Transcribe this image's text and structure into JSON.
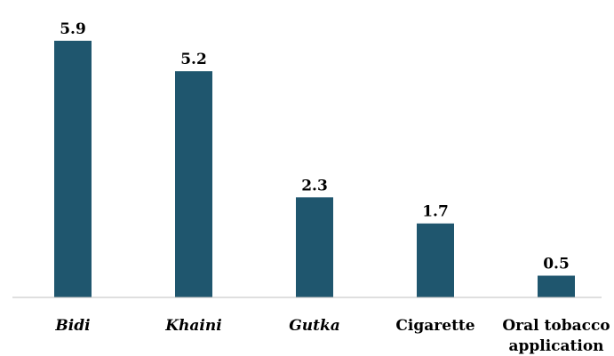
{
  "chart_data": {
    "type": "bar",
    "title": "",
    "xlabel": "",
    "ylabel": "",
    "categories": [
      {
        "lines": [
          "Bidi"
        ],
        "italic": true
      },
      {
        "lines": [
          "Khaini"
        ],
        "italic": true
      },
      {
        "lines": [
          "Gutka"
        ],
        "italic": true
      },
      {
        "lines": [
          "Cigarette"
        ],
        "italic": false
      },
      {
        "lines": [
          "Oral tobacco",
          "application"
        ],
        "italic": false
      }
    ],
    "values": [
      5.9,
      5.2,
      2.3,
      1.7,
      0.5
    ],
    "value_labels": [
      "5.9",
      "5.2",
      "2.3",
      "1.7",
      "0.5"
    ],
    "ylim": [
      0,
      6.5
    ],
    "grid": false,
    "legend": "none",
    "colors": {
      "bar": "#1f566e",
      "axis": "#bfbfbf",
      "text": "#000000"
    }
  }
}
